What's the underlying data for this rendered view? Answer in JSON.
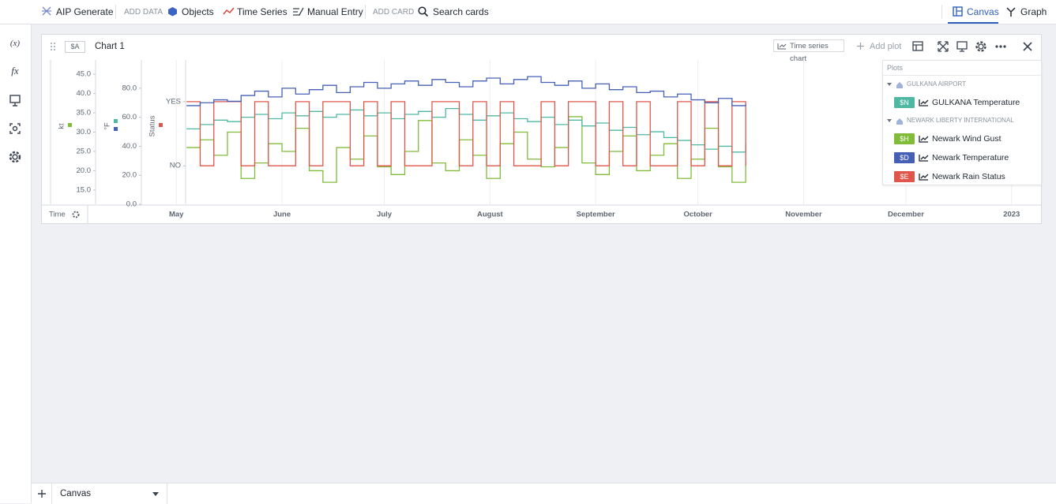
{
  "sidebar": {
    "variables": "(x)",
    "functions": "fx"
  },
  "toolbar": {
    "generate": "AIP Generate",
    "add_data": "ADD DATA",
    "objects": "Objects",
    "time_series": "Time Series",
    "manual_entry": "Manual Entry",
    "add_card": "ADD CARD",
    "search": "Search cards",
    "canvas": "Canvas",
    "graph": "Graph"
  },
  "card": {
    "badge": "$A",
    "title": "Chart 1",
    "chart_type": "Time series chart",
    "add_plot": "Add plot"
  },
  "chart_data": {
    "type": "line",
    "step": true,
    "grid": true,
    "x_label": "Time",
    "legend_title": "Plots",
    "x": [
      "2022-05-04",
      "2022-05-08",
      "2022-05-12",
      "2022-05-16",
      "2022-05-20",
      "2022-05-24",
      "2022-05-28",
      "2022-06-01",
      "2022-06-05",
      "2022-06-09",
      "2022-06-13",
      "2022-06-17",
      "2022-06-21",
      "2022-06-25",
      "2022-06-29",
      "2022-07-03",
      "2022-07-07",
      "2022-07-11",
      "2022-07-15",
      "2022-07-19",
      "2022-07-23",
      "2022-07-27",
      "2022-07-31",
      "2022-08-04",
      "2022-08-08",
      "2022-08-12",
      "2022-08-16",
      "2022-08-20",
      "2022-08-24",
      "2022-08-28",
      "2022-09-01",
      "2022-09-05",
      "2022-09-09",
      "2022-09-13",
      "2022-09-17",
      "2022-09-21",
      "2022-09-25",
      "2022-09-29",
      "2022-10-03",
      "2022-10-07",
      "2022-10-11",
      "2022-10-15"
    ],
    "xlim": [
      "2022-04-05",
      "2023-01-08"
    ],
    "xticks": [
      {
        "value": "2022-05-01",
        "label": "May"
      },
      {
        "value": "2022-06-01",
        "label": "June"
      },
      {
        "value": "2022-07-01",
        "label": "July"
      },
      {
        "value": "2022-08-01",
        "label": "August"
      },
      {
        "value": "2022-09-01",
        "label": "September"
      },
      {
        "value": "2022-10-01",
        "label": "October"
      },
      {
        "value": "2022-11-01",
        "label": "November"
      },
      {
        "value": "2022-12-01",
        "label": "December"
      },
      {
        "value": "2023-01-01",
        "label": "2023"
      }
    ],
    "ylabel": "kt",
    "ylim": [
      11.3,
      48.7
    ],
    "yticks": [
      {
        "value": 15,
        "label": "15.0"
      },
      {
        "value": 20,
        "label": "20.0"
      },
      {
        "value": 25,
        "label": "25.0"
      },
      {
        "value": 30,
        "label": "30.0"
      },
      {
        "value": 35,
        "label": "35.0"
      },
      {
        "value": 40,
        "label": "40.0"
      },
      {
        "value": 45,
        "label": "45.0"
      }
    ],
    "y2label": "°F",
    "y2lim": [
      0,
      99.5
    ],
    "y2ticks": [
      {
        "value": 0,
        "label": "0.0"
      },
      {
        "value": 20,
        "label": "20.0"
      },
      {
        "value": 40,
        "label": "40.0"
      },
      {
        "value": 60,
        "label": "60.0"
      },
      {
        "value": 80,
        "label": "80.0"
      }
    ],
    "y3label": "Status",
    "y3lim": [
      -0.6,
      1.65
    ],
    "y3ticks": [
      {
        "value": 0,
        "label": "NO"
      },
      {
        "value": 1,
        "label": "YES"
      }
    ],
    "series": [
      {
        "name": "GULKANA Temperature",
        "group": "GULKANA AIRPORT",
        "badge": "$N",
        "color": "#4fb8a3",
        "axis": "y2",
        "values": [
          52,
          55,
          58,
          57,
          60,
          62,
          59,
          63,
          61,
          64,
          60,
          62,
          65,
          61,
          63,
          59,
          62,
          64,
          60,
          66,
          62,
          58,
          61,
          63,
          59,
          57,
          60,
          55,
          58,
          54,
          56,
          51,
          53,
          48,
          50,
          46,
          44,
          41,
          38,
          40,
          36,
          42
        ]
      },
      {
        "name": "Newark Wind Gust",
        "group": "NEWARK LIBERTY INTERNATIONAL",
        "badge": "$H",
        "color": "#80bc3a",
        "axis": "y",
        "values": [
          26,
          28,
          24,
          30,
          18,
          22,
          27,
          25,
          31,
          20,
          17,
          26,
          23,
          29,
          21,
          19,
          25,
          33,
          22,
          20,
          28,
          24,
          18,
          27,
          30,
          23,
          21,
          26,
          34,
          22,
          19,
          25,
          29,
          20,
          24,
          27,
          18,
          23,
          31,
          21,
          17,
          22
        ]
      },
      {
        "name": "Newark Temperature",
        "group": "NEWARK LIBERTY INTERNATIONAL",
        "badge": "$D",
        "color": "#4660b5",
        "axis": "y2",
        "values": [
          68,
          70,
          72,
          71,
          75,
          78,
          74,
          80,
          76,
          79,
          82,
          77,
          81,
          84,
          80,
          83,
          85,
          82,
          86,
          84,
          81,
          85,
          87,
          83,
          86,
          88,
          84,
          82,
          85,
          80,
          83,
          79,
          81,
          77,
          78,
          74,
          76,
          72,
          70,
          73,
          68,
          69
        ]
      },
      {
        "name": "Newark Rain Status",
        "group": "NEWARK LIBERTY INTERNATIONAL",
        "badge": "$E",
        "color": "#e0564a",
        "axis": "y3",
        "values": [
          1,
          0,
          1,
          1,
          0,
          1,
          0,
          0,
          1,
          0,
          1,
          1,
          0,
          1,
          0,
          1,
          0,
          0,
          1,
          1,
          0,
          1,
          0,
          1,
          0,
          0,
          1,
          0,
          1,
          1,
          0,
          1,
          0,
          1,
          0,
          0,
          1,
          0,
          1,
          0,
          1,
          0
        ]
      }
    ]
  },
  "footer": {
    "tab": "Canvas"
  }
}
